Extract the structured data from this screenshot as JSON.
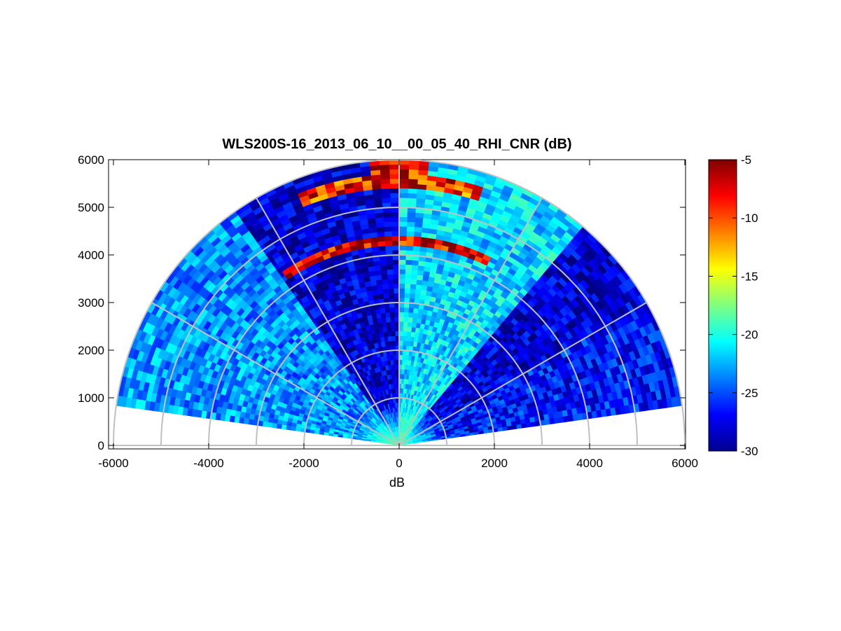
{
  "chart_data": {
    "type": "heatmap",
    "title": "WLS200S-16_2013_06_10__00_05_40_RHI_CNR (dB)",
    "xlabel": "dB",
    "ylabel": "",
    "xlim": [
      -6000,
      6000
    ],
    "ylim": [
      0,
      6000
    ],
    "xticks": [
      "-6000",
      "-4000",
      "-2000",
      "0",
      "2000",
      "4000",
      "6000"
    ],
    "yticks": [
      "0",
      "1000",
      "2000",
      "3000",
      "4000",
      "5000",
      "6000"
    ],
    "colorbar": {
      "min": -30,
      "max": -5,
      "ticks": [
        "-5",
        "-10",
        "-15",
        "-20",
        "-25",
        "-30"
      ],
      "colormap": "jet"
    },
    "polar_grid": {
      "range_rings": [
        1000,
        2000,
        3000,
        4000,
        5000,
        6000
      ],
      "spokes_deg": [
        0,
        30,
        60,
        90,
        120,
        150,
        180
      ]
    },
    "sectors": [
      {
        "from_deg": 8,
        "to_deg": 30,
        "base_cnr": -26.5,
        "max_range": 6000
      },
      {
        "from_deg": 30,
        "to_deg": 50,
        "base_cnr": -28.0,
        "max_range": 6000
      },
      {
        "from_deg": 50,
        "to_deg": 90,
        "base_cnr": -21.5,
        "max_range": 6000
      },
      {
        "from_deg": 90,
        "to_deg": 125,
        "base_cnr": -28.0,
        "max_range": 6000
      },
      {
        "from_deg": 125,
        "to_deg": 150,
        "base_cnr": -23.5,
        "max_range": 6000
      },
      {
        "from_deg": 150,
        "to_deg": 171,
        "base_cnr": -23.0,
        "max_range": 6000
      }
    ],
    "features": [
      {
        "type": "layer",
        "range": 4300,
        "from_deg": 65,
        "to_deg": 124,
        "cnr": -7
      },
      {
        "type": "layer",
        "range": 5550,
        "from_deg": 72,
        "to_deg": 112,
        "cnr": -9
      },
      {
        "type": "layer",
        "range": 5850,
        "from_deg": 84,
        "to_deg": 96,
        "cnr": -8
      },
      {
        "type": "near_field",
        "max_range": 1000,
        "cnr": -18
      }
    ]
  }
}
